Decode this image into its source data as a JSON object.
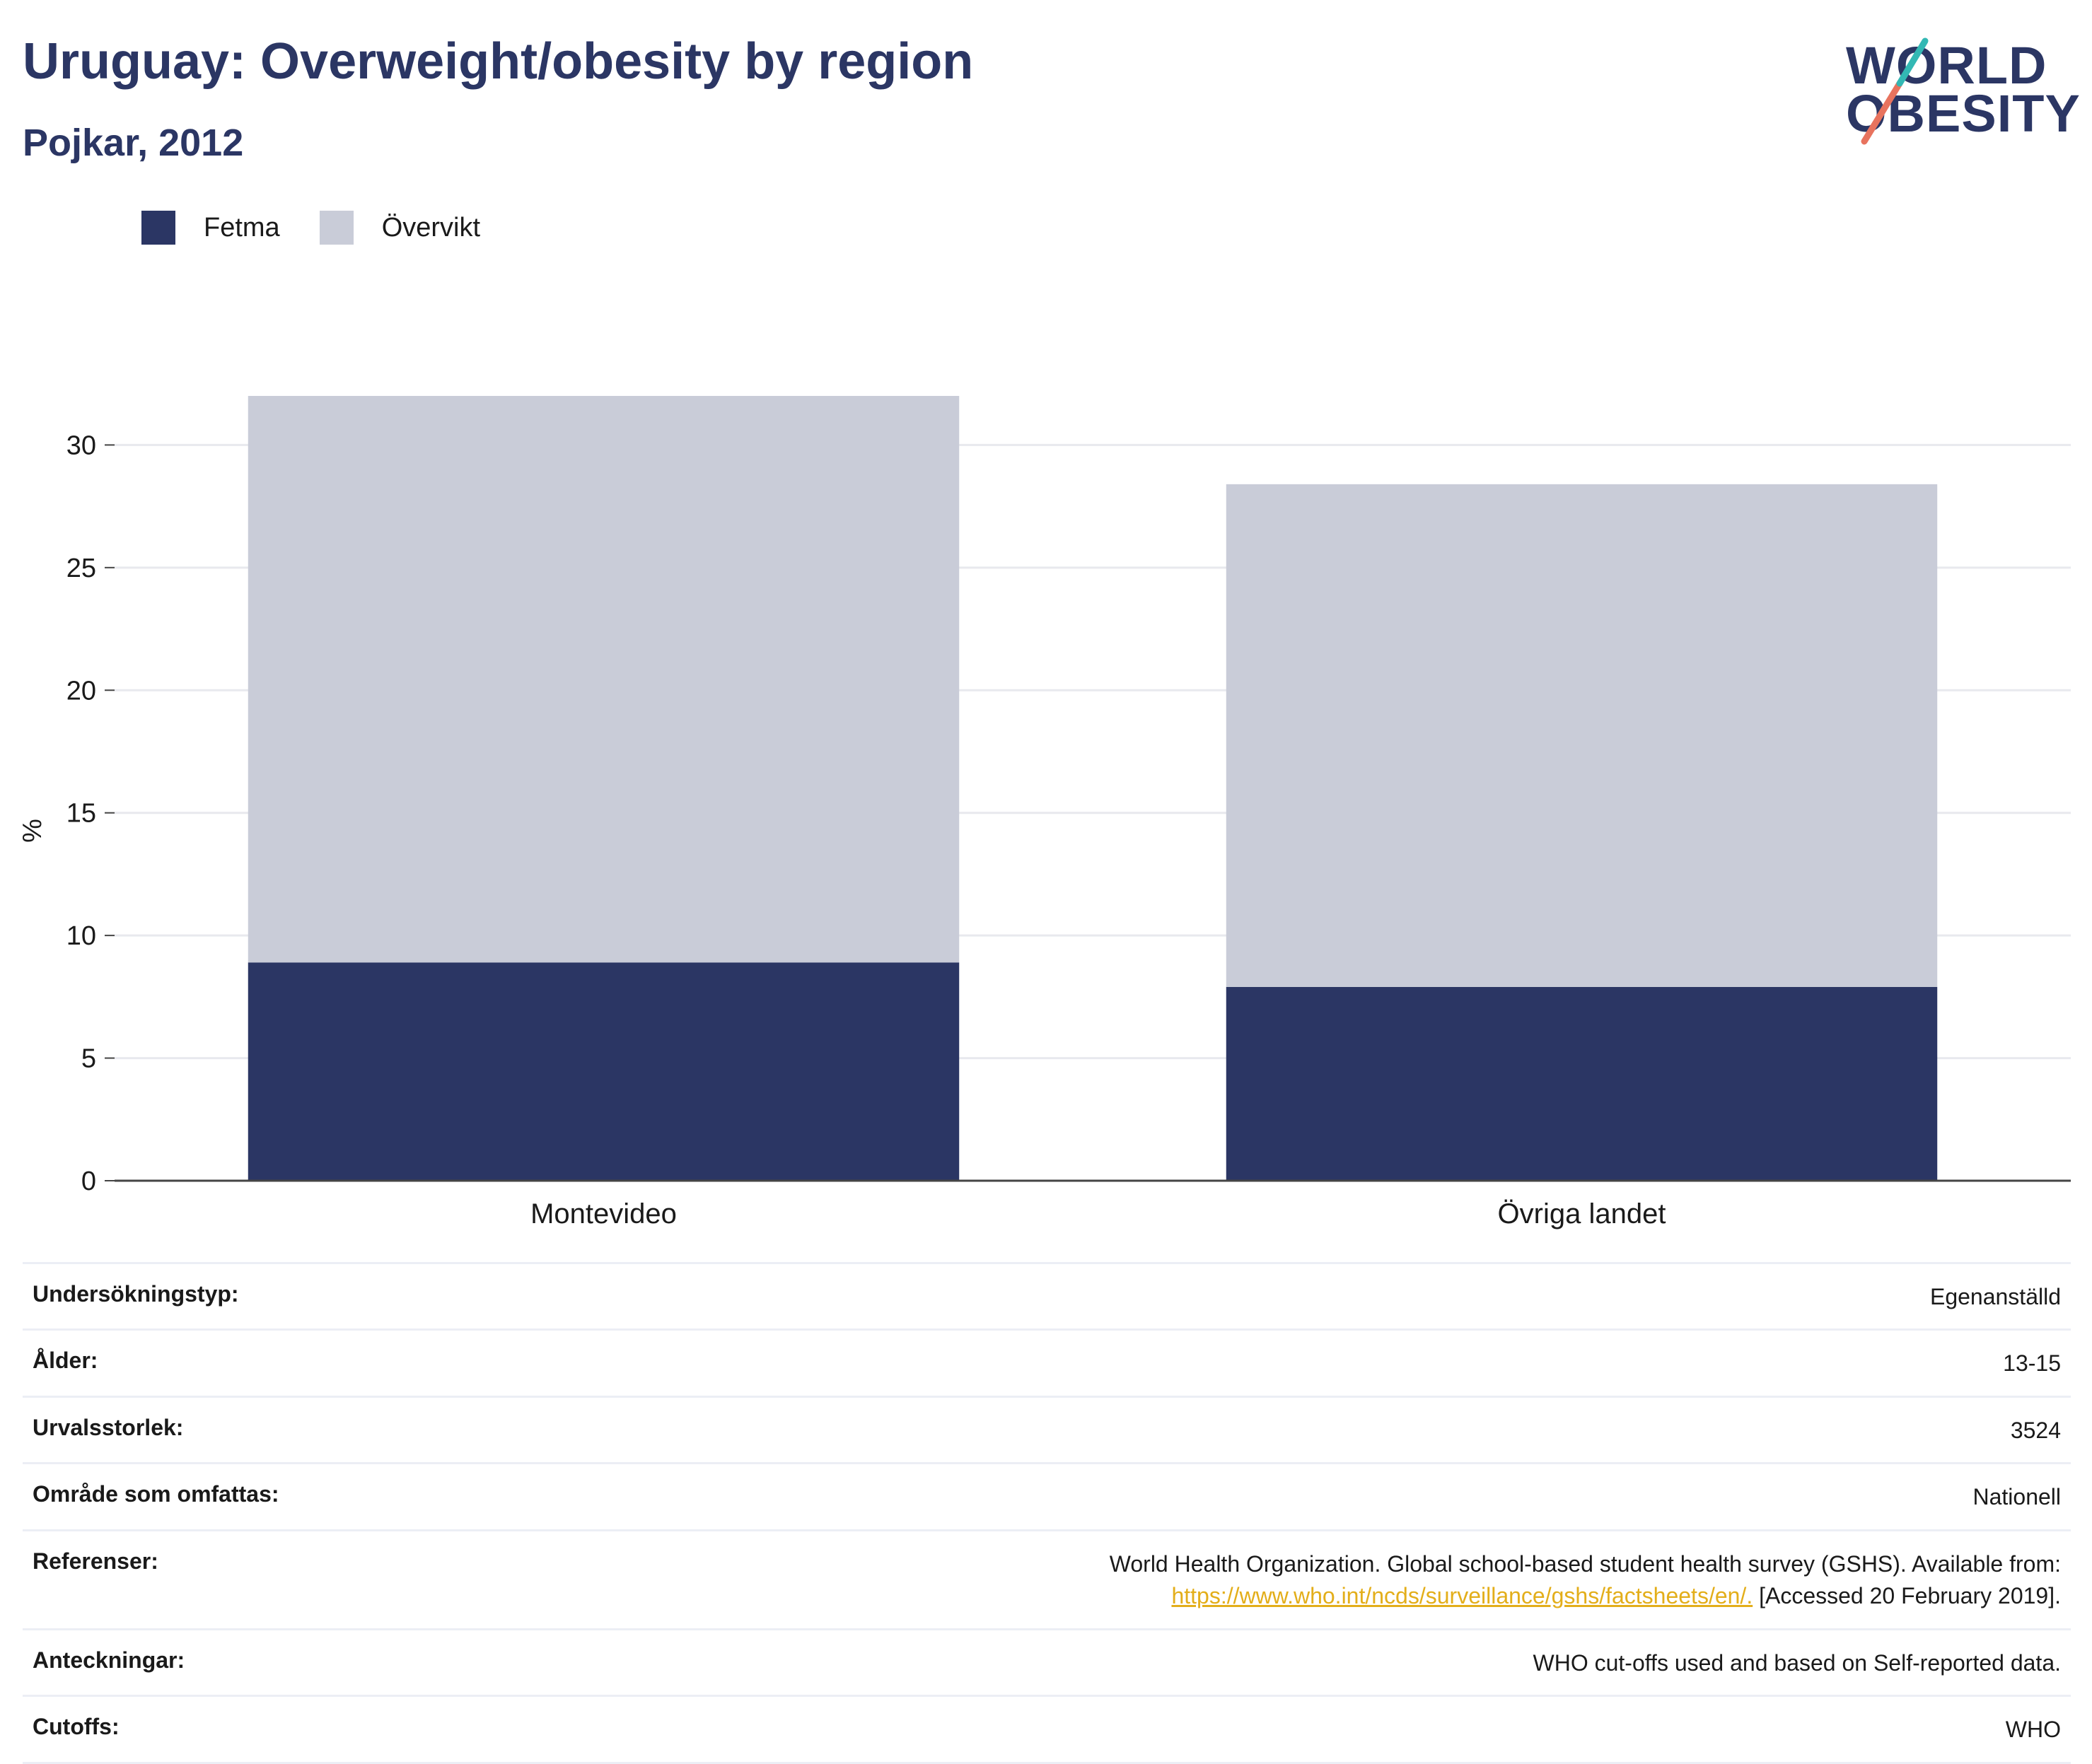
{
  "header": {
    "title": "Uruguay: Overweight/obesity by region",
    "subtitle": "Pojkar, 2012"
  },
  "logo": {
    "line1": "WORLD",
    "line2": "OBESITY"
  },
  "colors": {
    "fetma": "#2b3664",
    "overvikt": "#c9ccd8",
    "title": "#2b3664",
    "link": "#e3ae1a",
    "logo_teal": "#33b8b4",
    "logo_coral": "#e8735e"
  },
  "chart_data": {
    "type": "bar",
    "stacked": true,
    "categories": [
      "Montevideo",
      "Övriga landet"
    ],
    "series": [
      {
        "name": "Fetma",
        "values": [
          8.9,
          7.9
        ]
      },
      {
        "name": "Övervikt",
        "values": [
          23.1,
          20.5
        ]
      }
    ],
    "ylabel": "%",
    "ylim": [
      0,
      32
    ],
    "yticks": [
      0,
      5,
      10,
      15,
      20,
      25,
      30
    ],
    "grid": true,
    "legend": "top-left"
  },
  "info": {
    "survey_type": {
      "label": "Undersökningstyp:",
      "value": "Egenanställd"
    },
    "age": {
      "label": "Ålder:",
      "value": "13-15"
    },
    "sample_size": {
      "label": "Urvalsstorlek:",
      "value": "3524"
    },
    "area": {
      "label": "Område som omfattas:",
      "value": "Nationell"
    },
    "references": {
      "label": "Referenser:",
      "text": "World Health Organization. Global school-based student health survey (GSHS). Available from:",
      "link": "https://www.who.int/ncds/surveillance/gshs/factsheets/en/.",
      "accessed": "[Accessed 20 February 2019]."
    },
    "notes": {
      "label": "Anteckningar:",
      "value": "WHO cut-offs used and based on Self-reported data."
    },
    "cutoffs": {
      "label": "Cutoffs:",
      "value": "WHO"
    }
  }
}
